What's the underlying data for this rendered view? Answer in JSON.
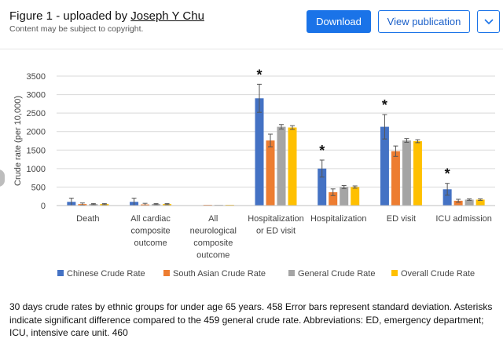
{
  "header": {
    "figure_label": "Figure 1 - uploaded by ",
    "author": "Joseph Y Chu",
    "copyright": "Content may be subject to copyright.",
    "download_label": "Download",
    "view_label": "View publication",
    "accent_color": "#1a73e8"
  },
  "chart_data": {
    "type": "bar",
    "title": "",
    "xlabel": "",
    "ylabel": "Crude rate (per 10,000)",
    "ylim": [
      0,
      3500
    ],
    "yticks": [
      0,
      500,
      1000,
      1500,
      2000,
      2500,
      3000,
      3500
    ],
    "grid": true,
    "legend_position": "bottom",
    "categories": [
      [
        "Death"
      ],
      [
        "All cardiac",
        "composite",
        "outcome"
      ],
      [
        "All",
        "neurological",
        "composite",
        "outcome"
      ],
      [
        "Hospitalization",
        "or ED visit"
      ],
      [
        "Hospitalization"
      ],
      [
        "ED visit"
      ],
      [
        "ICU admission"
      ]
    ],
    "series": [
      {
        "name": "Chinese Crude Rate",
        "color": "#4472c4",
        "values": [
          100,
          100,
          0,
          2900,
          1000,
          2130,
          440
        ],
        "errors": [
          100,
          100,
          0,
          380,
          230,
          330,
          160
        ]
      },
      {
        "name": "South Asian Crude Rate",
        "color": "#ed7d31",
        "values": [
          40,
          30,
          20,
          1760,
          360,
          1470,
          130
        ],
        "errors": [
          30,
          30,
          0,
          170,
          90,
          140,
          40
        ]
      },
      {
        "name": "General Crude Rate",
        "color": "#a5a5a5",
        "values": [
          40,
          40,
          20,
          2130,
          500,
          1760,
          160
        ],
        "errors": [
          15,
          15,
          0,
          60,
          40,
          50,
          20
        ]
      },
      {
        "name": "Overall Crude Rate",
        "color": "#ffc000",
        "values": [
          40,
          40,
          20,
          2110,
          500,
          1740,
          160
        ],
        "errors": [
          15,
          15,
          0,
          50,
          30,
          40,
          20
        ]
      }
    ],
    "significance_markers": [
      {
        "category_index": 3,
        "label": "*"
      },
      {
        "category_index": 4,
        "label": "*"
      },
      {
        "category_index": 5,
        "label": "*"
      },
      {
        "category_index": 6,
        "label": "*"
      }
    ]
  },
  "caption": "30 days crude rates by ethnic groups for under age 65 years. 458 Error bars represent standard deviation. Asterisks indicate significant difference compared to the 459 general crude rate. Abbreviations: ED, emergency department; ICU, intensive care unit. 460"
}
